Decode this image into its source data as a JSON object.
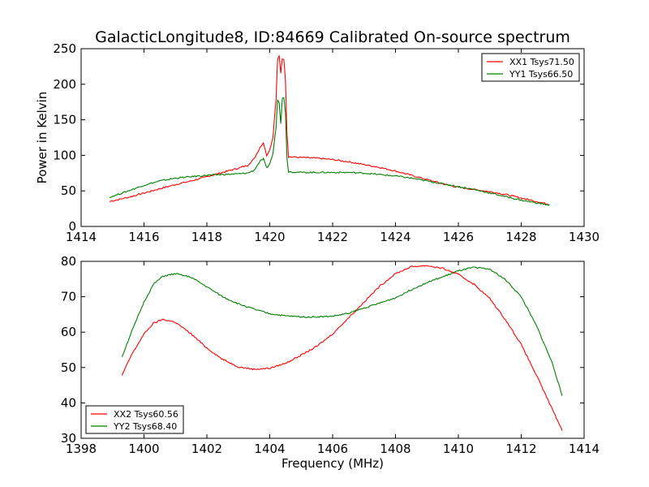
{
  "figure": {
    "title": "GalacticLongitude8, ID:84669 Calibrated On-source spectrum",
    "xlabel": "Frequency (MHz)"
  },
  "chart_data": [
    {
      "type": "line",
      "title": "GalacticLongitude8, ID:84669 Calibrated On-source spectrum",
      "xlabel": "",
      "ylabel": "Power in Kelvin",
      "xlim": [
        1414,
        1430
      ],
      "ylim": [
        0,
        250
      ],
      "xticks": [
        1414,
        1416,
        1418,
        1420,
        1422,
        1424,
        1426,
        1428,
        1430
      ],
      "yticks": [
        0,
        50,
        100,
        150,
        200,
        250
      ],
      "grid": false,
      "legend_position": "top-right",
      "series": [
        {
          "name": "XX1 Tsys71.50",
          "color": "#ff0000",
          "x": [
            1414.9,
            1415.5,
            1416.0,
            1416.5,
            1417.0,
            1417.5,
            1418.0,
            1418.5,
            1419.0,
            1419.3,
            1419.5,
            1419.7,
            1419.8,
            1419.9,
            1420.0,
            1420.1,
            1420.2,
            1420.25,
            1420.3,
            1420.35,
            1420.4,
            1420.45,
            1420.5,
            1420.55,
            1420.6,
            1421.0,
            1421.5,
            1422.0,
            1422.5,
            1423.0,
            1423.5,
            1424.0,
            1424.5,
            1425.0,
            1425.5,
            1426.0,
            1426.5,
            1427.0,
            1427.5,
            1428.0,
            1428.5,
            1428.9
          ],
          "y": [
            35,
            41,
            47,
            53,
            59,
            64,
            70,
            76,
            82,
            86,
            95,
            112,
            118,
            100,
            108,
            125,
            180,
            235,
            240,
            215,
            236,
            235,
            205,
            130,
            98,
            97,
            96,
            94,
            91,
            87,
            83,
            78,
            72,
            66,
            60,
            55,
            52,
            49,
            45,
            40,
            35,
            31
          ]
        },
        {
          "name": "YY1 Tsys66.50",
          "color": "#008000",
          "x": [
            1414.9,
            1415.5,
            1416.0,
            1416.5,
            1417.0,
            1417.5,
            1418.0,
            1418.5,
            1419.0,
            1419.3,
            1419.5,
            1419.7,
            1419.8,
            1419.9,
            1420.0,
            1420.1,
            1420.2,
            1420.25,
            1420.3,
            1420.35,
            1420.4,
            1420.45,
            1420.5,
            1420.55,
            1420.6,
            1421.0,
            1421.5,
            1422.0,
            1422.5,
            1423.0,
            1423.5,
            1424.0,
            1424.5,
            1425.0,
            1425.5,
            1426.0,
            1426.5,
            1427.0,
            1427.5,
            1428.0,
            1428.5,
            1428.9
          ],
          "y": [
            41,
            50,
            58,
            64,
            68,
            70,
            72,
            73,
            74,
            75,
            79,
            92,
            95,
            82,
            88,
            102,
            140,
            178,
            175,
            145,
            180,
            181,
            160,
            95,
            77,
            76,
            76,
            76,
            76,
            75,
            73,
            71,
            68,
            64,
            60,
            56,
            52,
            47,
            42,
            37,
            33,
            30
          ]
        }
      ]
    },
    {
      "type": "line",
      "title": "",
      "xlabel": "Frequency (MHz)",
      "ylabel": "",
      "xlim": [
        1398,
        1414
      ],
      "ylim": [
        30,
        80
      ],
      "xticks": [
        1398,
        1400,
        1402,
        1404,
        1406,
        1408,
        1410,
        1412,
        1414
      ],
      "yticks": [
        30,
        40,
        50,
        60,
        70,
        80
      ],
      "grid": false,
      "legend_position": "bottom-left",
      "series": [
        {
          "name": "XX2 Tsys60.56",
          "color": "#ff0000",
          "x": [
            1399.3,
            1399.6,
            1400.0,
            1400.3,
            1400.6,
            1401.0,
            1401.5,
            1402.0,
            1402.5,
            1403.0,
            1403.5,
            1404.0,
            1404.5,
            1405.0,
            1405.5,
            1406.0,
            1406.5,
            1407.0,
            1407.5,
            1408.0,
            1408.5,
            1409.0,
            1409.5,
            1410.0,
            1410.5,
            1411.0,
            1411.5,
            1412.0,
            1412.5,
            1413.0,
            1413.3
          ],
          "y": [
            47.8,
            53.5,
            59.5,
            62.5,
            63.6,
            62.8,
            59.5,
            55.5,
            52.3,
            50.2,
            49.5,
            49.8,
            51.2,
            53.5,
            56.0,
            59.5,
            64.0,
            68.5,
            73.0,
            76.5,
            78.5,
            78.8,
            78.0,
            76.3,
            73.5,
            69.5,
            63.5,
            56.5,
            47.5,
            38.0,
            32.3
          ]
        },
        {
          "name": "YY2 Tsys68.40",
          "color": "#008000",
          "x": [
            1399.3,
            1399.6,
            1400.0,
            1400.3,
            1400.6,
            1401.0,
            1401.5,
            1402.0,
            1402.5,
            1403.0,
            1403.5,
            1404.0,
            1404.5,
            1405.0,
            1405.5,
            1406.0,
            1406.5,
            1407.0,
            1407.5,
            1408.0,
            1408.5,
            1409.0,
            1409.5,
            1410.0,
            1410.5,
            1411.0,
            1411.5,
            1412.0,
            1412.5,
            1413.0,
            1413.3
          ],
          "y": [
            53.0,
            60.0,
            68.5,
            73.5,
            75.8,
            76.5,
            75.5,
            72.8,
            70.0,
            68.0,
            66.5,
            65.2,
            64.6,
            64.3,
            64.3,
            64.5,
            65.3,
            66.8,
            68.2,
            69.7,
            72.0,
            74.0,
            75.6,
            77.3,
            78.3,
            77.8,
            74.8,
            70.0,
            61.5,
            51.0,
            42.0
          ]
        }
      ]
    }
  ]
}
